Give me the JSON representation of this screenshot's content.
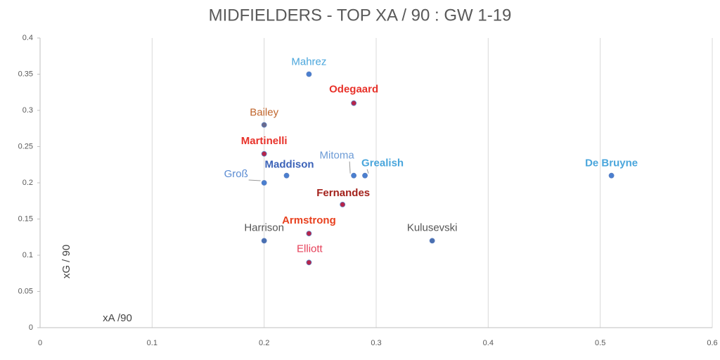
{
  "chart_data": {
    "type": "scatter",
    "title": "MIDFIELDERS - TOP XA / 90 : GW 1-19",
    "x_label": "xA /90",
    "y_label": "xG / 90",
    "labels": [
      "Mahrez",
      "Odegaard",
      "Bailey",
      "Martinelli",
      "Groß",
      "Maddison",
      "Mitoma",
      "Grealish",
      "De Bruyne",
      "Fernandes",
      "Armstrong",
      "Harrison",
      "Elliott",
      "Kulusevski"
    ],
    "x": [
      0.24,
      0.28,
      0.2,
      0.2,
      0.2,
      0.22,
      0.28,
      0.29,
      0.51,
      0.27,
      0.24,
      0.2,
      0.24,
      0.35
    ],
    "values": [
      0.35,
      0.31,
      0.28,
      0.24,
      0.2,
      0.21,
      0.21,
      0.21,
      0.21,
      0.17,
      0.13,
      0.12,
      0.09,
      0.12
    ],
    "label_colors": [
      "#4aa6dc",
      "#e8322a",
      "#c0652c",
      "#e8322a",
      "#5a8bd2",
      "#3c63b8",
      "#6c9bd6",
      "#4aa6dc",
      "#4aa6dc",
      "#a3221c",
      "#e8401e",
      "#555555",
      "#e6415a",
      "#555555"
    ],
    "marker_colors": [
      "#4a7fd0",
      "#b8244a",
      "#6a6a8c",
      "#b8244a",
      "#4a7fd0",
      "#4a7fd0",
      "#4a7fd0",
      "#4a7fd0",
      "#4a7fd0",
      "#b8244a",
      "#b8244a",
      "#4a6fb0",
      "#b8244a",
      "#4a6fb0"
    ],
    "xlim": [
      0,
      0.6
    ],
    "xticks": [
      0,
      0.1,
      0.2,
      0.3,
      0.4,
      0.5,
      0.6
    ],
    "ylim": [
      0,
      0.4
    ],
    "yticks": [
      0,
      0.05,
      0.1,
      0.15,
      0.2,
      0.25,
      0.3,
      0.35,
      0.4
    ],
    "grid": "x"
  }
}
